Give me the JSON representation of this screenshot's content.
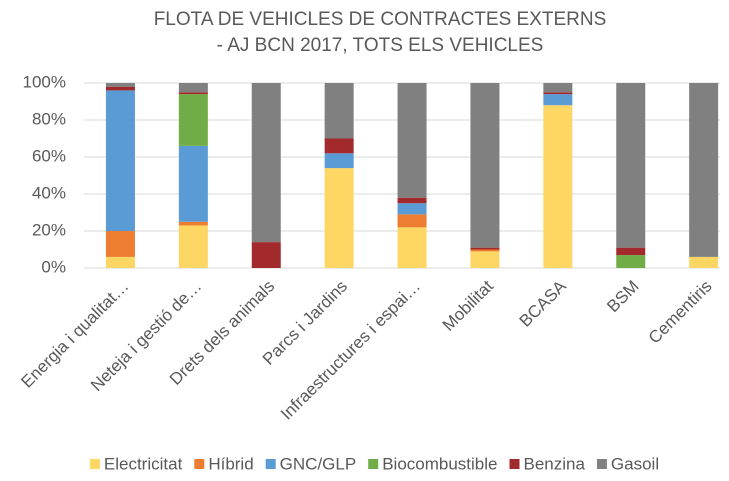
{
  "chart_data": {
    "type": "stacked_bar",
    "title": [
      "FLOTA DE VEHICLES DE CONTRACTES EXTERNS",
      "- AJ BCN 2017, TOTS ELS VEHICLES"
    ],
    "categories": [
      "Energia i qualitat…",
      "Neteja i gestió de…",
      "Drets dels animals",
      "Parcs i Jardins",
      "Infraestructures i espai…",
      "Mobilitat",
      "BCASA",
      "BSM",
      "Cementiris"
    ],
    "series": [
      {
        "name": "Electricitat",
        "color": "#fdd663",
        "values": [
          6,
          23,
          0,
          54,
          22,
          9,
          88,
          0,
          6
        ]
      },
      {
        "name": "Híbrid",
        "color": "#ed7d31",
        "values": [
          14,
          2,
          0,
          0,
          7,
          1,
          0,
          0,
          0
        ]
      },
      {
        "name": "GNC/GLP",
        "color": "#5b9bd5",
        "values": [
          76,
          41,
          0,
          8,
          6,
          0,
          6,
          0,
          0
        ]
      },
      {
        "name": "Biocombustible",
        "color": "#70ad47",
        "values": [
          0,
          28,
          0,
          0,
          0,
          0,
          0,
          7,
          0
        ]
      },
      {
        "name": "Benzina",
        "color": "#a32a2c",
        "values": [
          2,
          1,
          14,
          8,
          3,
          1,
          1,
          4,
          0
        ]
      },
      {
        "name": "Gasoil",
        "color": "#808080",
        "values": [
          2,
          5,
          86,
          30,
          62,
          89,
          5,
          89,
          94
        ]
      }
    ],
    "ylim": [
      0,
      100
    ],
    "yticks": [
      {
        "value": 0,
        "label": "0%"
      },
      {
        "value": 20,
        "label": "20%"
      },
      {
        "value": 40,
        "label": "40%"
      },
      {
        "value": 60,
        "label": "60%"
      },
      {
        "value": 80,
        "label": "80%"
      },
      {
        "value": 100,
        "label": "100%"
      }
    ],
    "grid": true,
    "legend": "bottom"
  }
}
